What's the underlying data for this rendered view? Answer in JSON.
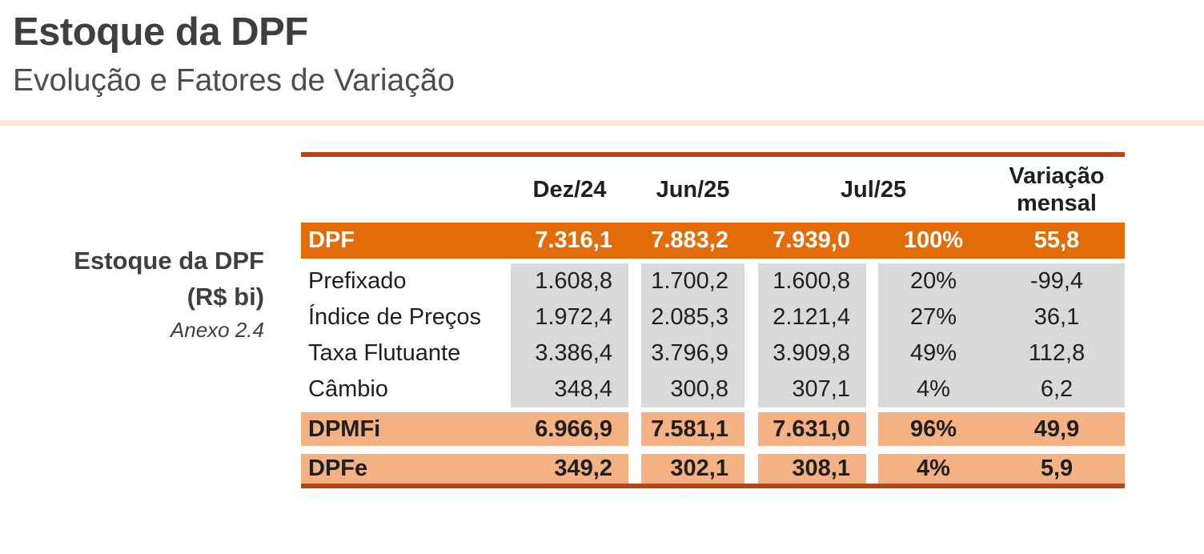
{
  "header": {
    "title": "Estoque da DPF",
    "subtitle": "Evolução e Fatores de Variação"
  },
  "side_label": {
    "title": "Estoque da DPF",
    "unit": "(R$ bi)",
    "annex": "Anexo 2.4"
  },
  "table": {
    "header": {
      "dez": "Dez/24",
      "jun": "Jun/25",
      "jul": "Jul/25",
      "var1": "Variação",
      "var2": "mensal"
    },
    "rows": [
      {
        "label": "DPF",
        "dez": "7.316,1",
        "jun": "7.883,2",
        "jul": "7.939,0",
        "share": "100%",
        "var": "55,8"
      },
      {
        "label": "Prefixado",
        "dez": "1.608,8",
        "jun": "1.700,2",
        "jul": "1.600,8",
        "share": "20%",
        "var": "-99,4"
      },
      {
        "label": "Índice de Preços",
        "dez": "1.972,4",
        "jun": "2.085,3",
        "jul": "2.121,4",
        "share": "27%",
        "var": "36,1"
      },
      {
        "label": "Taxa Flutuante",
        "dez": "3.386,4",
        "jun": "3.796,9",
        "jul": "3.909,8",
        "share": "49%",
        "var": "112,8"
      },
      {
        "label": "Câmbio",
        "dez": "348,4",
        "jun": "300,8",
        "jul": "307,1",
        "share": "4%",
        "var": "6,2"
      },
      {
        "label": "DPMFi",
        "dez": "6.966,9",
        "jun": "7.581,1",
        "jul": "7.631,0",
        "share": "96%",
        "var": "49,9"
      },
      {
        "label": "DPFe",
        "dez": "349,2",
        "jun": "302,1",
        "jul": "308,1",
        "share": "4%",
        "var": "5,9"
      }
    ]
  },
  "colors": {
    "orange": "#E36C0A",
    "rust": "#B34716",
    "peach": "#F4B183",
    "gray": "#D9D9D9",
    "underline": "#FBE5D6",
    "title_text": "#3F3F3F",
    "subtitle_text": "#4D4D4D"
  }
}
